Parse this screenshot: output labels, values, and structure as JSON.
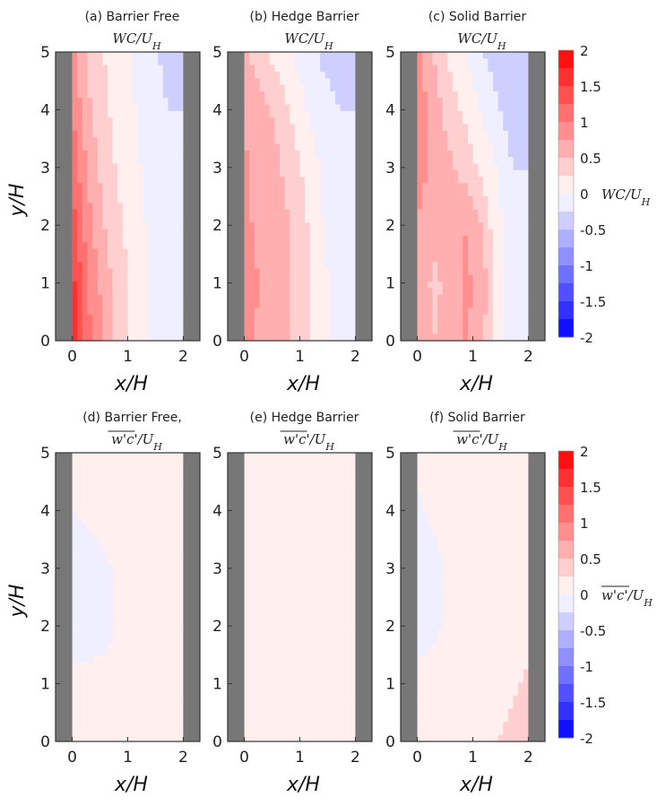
{
  "chart_data": [
    {
      "type": "heatmap",
      "rows": [
        {
          "variable": "WC/U_H",
          "variable_display": "WC/U",
          "variable_sub": "H",
          "panels": [
            {
              "title": "(a) Barrier Free",
              "field": [
                [
                  0.85,
                  0.45,
                  0.25,
                  0.1,
                  -0.05,
                  -0.2,
                  -0.3,
                  -0.3
                ],
                [
                  1.0,
                  0.55,
                  0.3,
                  0.15,
                  0.0,
                  -0.15,
                  -0.25,
                  -0.25
                ],
                [
                  1.2,
                  0.7,
                  0.4,
                  0.2,
                  0.05,
                  -0.1,
                  -0.2,
                  -0.2
                ],
                [
                  1.4,
                  0.85,
                  0.5,
                  0.3,
                  0.1,
                  -0.05,
                  -0.15,
                  -0.15
                ],
                [
                  1.6,
                  1.0,
                  0.65,
                  0.35,
                  0.15,
                  -0.05,
                  -0.15,
                  -0.15
                ],
                [
                  1.8,
                  1.1,
                  0.7,
                  0.4,
                  0.15,
                  -0.05,
                  -0.25,
                  -0.2
                ]
              ]
            },
            {
              "title": "(b) Hedge Barrier",
              "field": [
                [
                  0.55,
                  0.35,
                  0.15,
                  0.0,
                  -0.15,
                  -0.3,
                  -0.35,
                  -0.35
                ],
                [
                  0.7,
                  0.6,
                  0.45,
                  0.2,
                  0.0,
                  -0.15,
                  -0.25,
                  -0.25
                ],
                [
                  0.8,
                  0.65,
                  0.55,
                  0.4,
                  0.15,
                  -0.05,
                  -0.15,
                  -0.15
                ],
                [
                  0.85,
                  0.65,
                  0.6,
                  0.5,
                  0.25,
                  0.0,
                  -0.1,
                  -0.1
                ],
                [
                  0.85,
                  0.75,
                  0.65,
                  0.5,
                  0.3,
                  0.05,
                  -0.1,
                  -0.1
                ],
                [
                  0.8,
                  0.7,
                  0.6,
                  0.5,
                  0.3,
                  0.05,
                  -0.1,
                  -0.1
                ]
              ]
            },
            {
              "title": "(c) Solid Barrier",
              "field": [
                [
                  0.85,
                  0.5,
                  0.2,
                  0.0,
                  -0.2,
                  -0.4,
                  -0.5,
                  -0.45
                ],
                [
                  0.9,
                  0.65,
                  0.4,
                  0.2,
                  0.0,
                  -0.2,
                  -0.4,
                  -0.4
                ],
                [
                  0.85,
                  0.7,
                  0.55,
                  0.4,
                  0.2,
                  0.0,
                  -0.25,
                  -0.25
                ],
                [
                  0.75,
                  0.55,
                  0.6,
                  0.75,
                  0.5,
                  0.1,
                  -0.15,
                  -0.15
                ],
                [
                  0.7,
                  0.45,
                  0.55,
                  0.8,
                  0.7,
                  0.2,
                  -0.15,
                  -0.2
                ],
                [
                  0.65,
                  0.5,
                  0.55,
                  0.8,
                  0.6,
                  0.15,
                  -0.15,
                  -0.15
                ]
              ]
            }
          ]
        },
        {
          "variable": "w'c'/U_H",
          "variable_display": "w'c'/U",
          "variable_sub": "H",
          "panels": [
            {
              "title": "(d) Barrier Free,",
              "field": [
                [
                  0.1,
                  0.08,
                  0.08,
                  0.08,
                  0.08,
                  0.08,
                  0.08,
                  0.08
                ],
                [
                  0.0,
                  0.05,
                  0.08,
                  0.08,
                  0.08,
                  0.08,
                  0.08,
                  0.08
                ],
                [
                  -0.12,
                  -0.1,
                  -0.05,
                  0.05,
                  0.08,
                  0.08,
                  0.08,
                  0.08
                ],
                [
                  -0.1,
                  -0.12,
                  -0.08,
                  0.05,
                  0.08,
                  0.08,
                  0.08,
                  0.08
                ],
                [
                  0.05,
                  0.08,
                  0.08,
                  0.08,
                  0.08,
                  0.08,
                  0.1,
                  0.15
                ],
                [
                  0.08,
                  0.08,
                  0.08,
                  0.08,
                  0.08,
                  0.08,
                  0.1,
                  0.2
                ]
              ]
            },
            {
              "title": "(e) Hedge Barrier",
              "field": [
                [
                  0.08,
                  0.08,
                  0.08,
                  0.08,
                  0.08,
                  0.08,
                  0.08,
                  0.08
                ],
                [
                  0.08,
                  0.08,
                  0.08,
                  0.08,
                  0.08,
                  0.08,
                  0.08,
                  0.08
                ],
                [
                  0.08,
                  0.08,
                  0.08,
                  0.08,
                  0.08,
                  0.08,
                  0.08,
                  0.08
                ],
                [
                  0.08,
                  0.08,
                  0.08,
                  0.08,
                  0.08,
                  0.08,
                  0.08,
                  0.08
                ],
                [
                  0.08,
                  0.08,
                  0.15,
                  0.22,
                  0.15,
                  0.08,
                  0.08,
                  0.08
                ],
                [
                  0.08,
                  0.1,
                  0.2,
                  0.25,
                  0.2,
                  0.08,
                  0.08,
                  0.08
                ]
              ]
            },
            {
              "title": "(f) Solid Barrier",
              "field": [
                [
                  0.08,
                  0.08,
                  0.08,
                  0.1,
                  0.18,
                  0.2,
                  0.15,
                  0.1
                ],
                [
                  -0.05,
                  0.05,
                  0.08,
                  0.08,
                  0.08,
                  0.08,
                  0.08,
                  0.08
                ],
                [
                  -0.15,
                  -0.08,
                  0.05,
                  0.08,
                  0.08,
                  0.08,
                  0.08,
                  0.1
                ],
                [
                  -0.08,
                  -0.05,
                  0.05,
                  0.08,
                  0.08,
                  0.08,
                  0.12,
                  0.2
                ],
                [
                  0.05,
                  0.08,
                  0.08,
                  0.08,
                  0.1,
                  0.15,
                  0.22,
                  0.28
                ],
                [
                  0.08,
                  0.08,
                  0.08,
                  0.1,
                  0.18,
                  0.25,
                  0.3,
                  0.32
                ]
              ]
            }
          ]
        }
      ],
      "field_grid": {
        "x": [
          0.0,
          0.28,
          0.57,
          0.85,
          1.14,
          1.42,
          1.71,
          2.0
        ],
        "y": [
          5.0,
          4.0,
          3.0,
          2.0,
          1.0,
          0.0
        ]
      },
      "xlabel": "x/H",
      "ylabel": "y/H",
      "xlim": [
        -0.3,
        2.3
      ],
      "ylim": [
        0,
        5
      ],
      "xticks": [
        "0",
        "1",
        "2"
      ],
      "yticks": [
        "0",
        "1",
        "2",
        "3",
        "4",
        "5"
      ],
      "walls": [
        [
          -0.3,
          0.0
        ],
        [
          2.0,
          2.3
        ]
      ],
      "wall_color": "#777777",
      "colorbar": {
        "range": [
          -2,
          2
        ],
        "levels": 16,
        "colormap": "bwr",
        "ticks": [
          "2",
          "1.5",
          "1",
          "0.5",
          "0",
          "-0.5",
          "-1",
          "-1.5",
          "-2"
        ],
        "low_color": "#0000ff",
        "mid_color": "#ffffff",
        "high_color": "#ff0000"
      }
    }
  ]
}
